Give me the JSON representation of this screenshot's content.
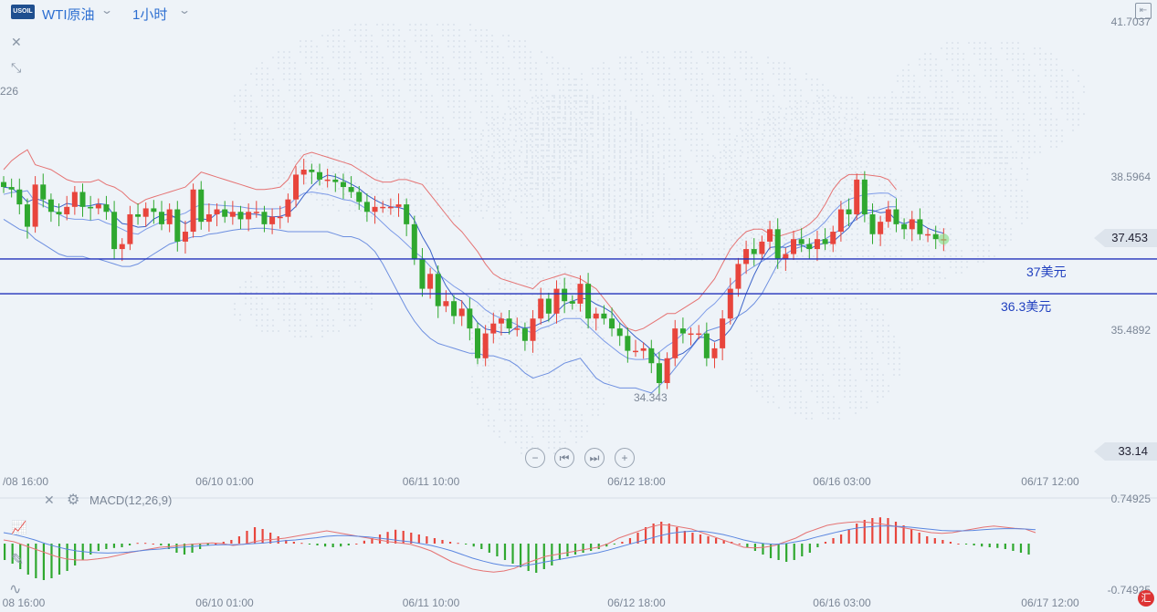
{
  "header": {
    "symbol_badge": "USOIL",
    "symbol": "WTI原油",
    "timeframe": "1小时"
  },
  "icons": [
    "close-icon",
    "collapse-icon",
    "settings-icon",
    "chart-type-icon",
    "draw-icon",
    "indicator-icon",
    "panel-toggle-icon"
  ],
  "chart_data": {
    "type": "candlestick",
    "y_ticks": [
      "41.7037",
      "38.5964",
      "35.4892",
      "33.14"
    ],
    "y_range": [
      33.14,
      41.7037
    ],
    "x_ticks": [
      "06/08 16:00",
      "06/10 01:00",
      "06/11 10:00",
      "06/12 18:00",
      "06/16 03:00",
      "06/17 12:00"
    ],
    "x_ticks_display": [
      "/08 16:00",
      "06/10 01:00",
      "06/11 10:00",
      "06/12 18:00",
      "06/16 03:00",
      "06/17 12:00"
    ],
    "last_price": "37.453",
    "high_label_partial": "226",
    "low_label": "34.343",
    "levels": [
      {
        "value": 37.0,
        "label": "37美元"
      },
      {
        "value": 36.3,
        "label": "36.3美元"
      }
    ],
    "indicators": [
      "Bollinger Bands",
      "Moving Averages"
    ],
    "close_series": [
      38.45,
      38.4,
      38.1,
      37.65,
      38.5,
      38.2,
      37.95,
      37.9,
      38.05,
      38.35,
      38.05,
      38.02,
      38.1,
      37.95,
      37.2,
      37.3,
      37.9,
      37.85,
      38.02,
      37.95,
      37.7,
      38.0,
      37.35,
      37.55,
      38.4,
      37.75,
      37.9,
      38.0,
      37.85,
      37.95,
      37.8,
      37.95,
      37.95,
      37.7,
      37.85,
      37.85,
      38.2,
      38.7,
      38.8,
      38.75,
      38.6,
      38.6,
      38.55,
      38.45,
      38.35,
      38.15,
      37.95,
      38.05,
      38.05,
      38.05,
      38.1,
      37.7,
      37.0,
      36.4,
      36.7,
      36.05,
      36.15,
      35.85,
      36.0,
      35.6,
      35.0,
      35.5,
      35.7,
      35.8,
      35.6,
      35.6,
      35.35,
      35.8,
      36.2,
      35.9,
      36.4,
      36.15,
      36.1,
      36.5,
      35.8,
      35.9,
      35.8,
      35.6,
      35.45,
      35.15,
      35.15,
      35.2,
      34.9,
      34.5,
      35.0,
      35.6,
      35.5,
      35.5,
      35.5,
      35.0,
      35.2,
      35.8,
      36.4,
      36.9,
      37.2,
      37.1,
      37.35,
      37.6,
      37.0,
      37.1,
      37.4,
      37.3,
      37.2,
      37.4,
      37.3,
      37.55,
      38.0,
      37.9,
      38.6,
      37.9,
      37.5,
      37.75,
      38.0,
      37.7,
      37.6,
      37.8,
      37.5,
      37.5,
      37.4,
      37.4
    ],
    "bollinger_upper": [
      38.8,
      38.98,
      39.1,
      39.2,
      38.9,
      38.85,
      38.8,
      38.7,
      38.6,
      38.55,
      38.55,
      38.55,
      38.6,
      38.5,
      38.45,
      38.35,
      38.2,
      38.1,
      38.2,
      38.25,
      38.3,
      38.35,
      38.4,
      38.45,
      38.6,
      38.75,
      38.7,
      38.65,
      38.6,
      38.55,
      38.5,
      38.45,
      38.4,
      38.4,
      38.42,
      38.45,
      38.6,
      38.9,
      39.1,
      39.15,
      39.1,
      39.05,
      39.0,
      38.95,
      38.9,
      38.8,
      38.7,
      38.6,
      38.55,
      38.55,
      38.6,
      38.6,
      38.55,
      38.5,
      38.3,
      38.1,
      37.9,
      37.7,
      37.55,
      37.35,
      37.15,
      36.9,
      36.7,
      36.6,
      36.55,
      36.5,
      36.45,
      36.4,
      36.55,
      36.6,
      36.65,
      36.7,
      36.65,
      36.6,
      36.5,
      36.4,
      36.2,
      36.0,
      35.8,
      35.6,
      35.55,
      35.6,
      35.7,
      35.8,
      35.9,
      35.9,
      36.0,
      36.1,
      36.2,
      36.4,
      36.6,
      36.9,
      37.2,
      37.4,
      37.55,
      37.6,
      37.6,
      37.5,
      37.45,
      37.5,
      37.55,
      37.6,
      37.7,
      37.85,
      38.1,
      38.4,
      38.6,
      38.7,
      38.7,
      38.7,
      38.68,
      38.66,
      38.6,
      38.4
    ],
    "bollinger_lower": [
      37.8,
      37.7,
      37.6,
      37.55,
      37.4,
      37.3,
      37.2,
      37.1,
      37.05,
      37.05,
      37.05,
      37.0,
      37.0,
      36.95,
      36.9,
      36.85,
      36.85,
      36.9,
      37.0,
      37.1,
      37.2,
      37.3,
      37.35,
      37.4,
      37.45,
      37.45,
      37.5,
      37.52,
      37.55,
      37.58,
      37.6,
      37.6,
      37.62,
      37.62,
      37.6,
      37.58,
      37.55,
      37.55,
      37.55,
      37.55,
      37.55,
      37.55,
      37.5,
      37.45,
      37.45,
      37.4,
      37.3,
      37.15,
      36.9,
      36.6,
      36.3,
      36.0,
      35.75,
      35.55,
      35.4,
      35.3,
      35.25,
      35.2,
      35.15,
      35.1,
      35.1,
      35.05,
      35.05,
      35.0,
      34.95,
      34.85,
      34.7,
      34.6,
      34.65,
      34.7,
      34.8,
      34.9,
      34.95,
      35.0,
      34.8,
      34.6,
      34.5,
      34.45,
      34.4,
      34.4,
      34.4,
      34.35,
      34.3,
      34.45,
      34.6,
      34.8,
      35.0,
      35.2,
      35.4,
      35.55,
      35.6,
      35.65,
      35.75,
      35.85,
      35.95,
      36.1,
      36.3,
      36.6,
      36.9,
      37.1,
      37.2,
      37.25,
      37.3,
      37.35,
      37.4,
      37.5,
      37.6,
      37.7,
      37.8,
      37.9,
      37.95,
      38.0,
      38.05,
      38.05
    ],
    "macd": {
      "params": "MACD(12,26,9)",
      "y_ticks": [
        "0.74925",
        "-0.74925"
      ],
      "histogram": [
        -0.45,
        -0.55,
        -0.7,
        -0.85,
        -0.95,
        -1.0,
        -0.95,
        -0.85,
        -0.75,
        -0.6,
        -0.45,
        -0.3,
        -0.2,
        -0.15,
        -0.12,
        -0.1,
        -0.05,
        0.02,
        0.02,
        0.0,
        -0.05,
        -0.15,
        -0.25,
        -0.3,
        -0.25,
        -0.15,
        -0.05,
        0.0,
        0.05,
        0.1,
        0.2,
        0.35,
        0.45,
        0.4,
        0.3,
        0.2,
        0.1,
        0.05,
        0.02,
        -0.02,
        -0.05,
        -0.08,
        -0.1,
        -0.08,
        -0.05,
        0.0,
        0.08,
        0.15,
        0.25,
        0.32,
        0.38,
        0.35,
        0.3,
        0.25,
        0.2,
        0.15,
        0.1,
        0.05,
        0.02,
        -0.02,
        -0.08,
        -0.15,
        -0.25,
        -0.35,
        -0.45,
        -0.55,
        -0.65,
        -0.75,
        -0.8,
        -0.7,
        -0.6,
        -0.45,
        -0.35,
        -0.3,
        -0.25,
        -0.2,
        -0.15,
        -0.08,
        -0.02,
        0.05,
        0.15,
        0.3,
        0.45,
        0.55,
        0.6,
        0.55,
        0.45,
        0.35,
        0.3,
        0.25,
        0.2,
        0.15,
        0.1,
        0.05,
        0.0,
        -0.1,
        -0.2,
        -0.3,
        -0.4,
        -0.45,
        -0.5,
        -0.45,
        -0.35,
        -0.25,
        -0.1,
        0.05,
        0.15,
        0.25,
        0.4,
        0.55,
        0.65,
        0.7,
        0.72,
        0.7,
        0.6,
        0.5,
        0.4,
        0.3,
        0.2,
        0.15,
        0.1,
        0.05,
        0.0,
        -0.02,
        -0.05,
        -0.08,
        -0.1,
        -0.12,
        -0.15,
        -0.2,
        -0.25,
        -0.3
      ],
      "dif": [
        0.1,
        0.05,
        -0.05,
        -0.15,
        -0.25,
        -0.35,
        -0.42,
        -0.45,
        -0.45,
        -0.42,
        -0.38,
        -0.32,
        -0.25,
        -0.2,
        -0.15,
        -0.1,
        -0.08,
        -0.05,
        -0.02,
        0.0,
        0.02,
        0.0,
        -0.05,
        -0.02,
        0.05,
        0.1,
        0.12,
        0.15,
        0.2,
        0.25,
        0.3,
        0.35,
        0.3,
        0.25,
        0.2,
        0.15,
        0.1,
        0.05,
        0.02,
        -0.02,
        -0.1,
        -0.2,
        -0.35,
        -0.5,
        -0.6,
        -0.7,
        -0.75,
        -0.78,
        -0.75,
        -0.68,
        -0.55,
        -0.45,
        -0.35,
        -0.3,
        -0.25,
        -0.2,
        -0.15,
        -0.1,
        0.0,
        0.15,
        0.25,
        0.35,
        0.45,
        0.52,
        0.5,
        0.45,
        0.4,
        0.3,
        0.2,
        0.1,
        0.0,
        -0.1,
        -0.12,
        -0.1,
        -0.05,
        0.05,
        0.15,
        0.3,
        0.4,
        0.5,
        0.55,
        0.58,
        0.6,
        0.58,
        0.55,
        0.5,
        0.45,
        0.4,
        0.35,
        0.3,
        0.28,
        0.3,
        0.35,
        0.4,
        0.45,
        0.48,
        0.45,
        0.42,
        0.4,
        0.3
      ],
      "dea": [
        0.3,
        0.25,
        0.18,
        0.1,
        0.0,
        -0.08,
        -0.15,
        -0.2,
        -0.23,
        -0.25,
        -0.26,
        -0.25,
        -0.23,
        -0.2,
        -0.17,
        -0.15,
        -0.12,
        -0.1,
        -0.08,
        -0.06,
        -0.04,
        -0.03,
        -0.03,
        -0.02,
        0.0,
        0.02,
        0.05,
        0.08,
        0.1,
        0.13,
        0.16,
        0.2,
        0.22,
        0.22,
        0.2,
        0.18,
        0.15,
        0.12,
        0.08,
        0.05,
        0.0,
        -0.05,
        -0.12,
        -0.2,
        -0.3,
        -0.4,
        -0.48,
        -0.55,
        -0.6,
        -0.62,
        -0.6,
        -0.56,
        -0.5,
        -0.45,
        -0.4,
        -0.35,
        -0.3,
        -0.25,
        -0.18,
        -0.1,
        -0.02,
        0.06,
        0.14,
        0.22,
        0.28,
        0.32,
        0.34,
        0.34,
        0.3,
        0.25,
        0.18,
        0.1,
        0.04,
        0.0,
        -0.02,
        0.0,
        0.05,
        0.1,
        0.18,
        0.25,
        0.32,
        0.38,
        0.43,
        0.46,
        0.48,
        0.48,
        0.47,
        0.45,
        0.42,
        0.39,
        0.36,
        0.35,
        0.35,
        0.36,
        0.38,
        0.4,
        0.41,
        0.41,
        0.4,
        0.38
      ]
    }
  }
}
